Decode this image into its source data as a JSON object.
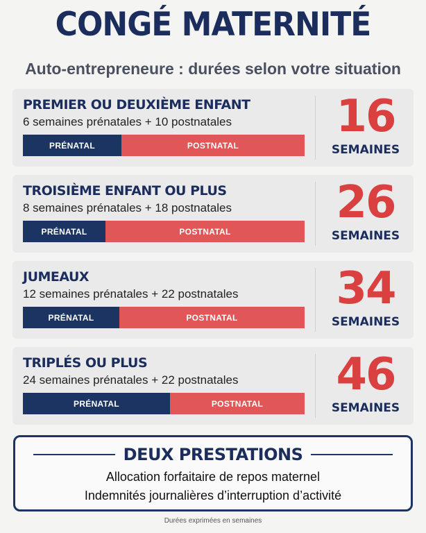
{
  "title": "CONGÉ MATERNITÉ",
  "subtitle": "Auto-entrepreneure : durées selon votre situation",
  "situations": [
    {
      "title": "PREMIER OU DEUXIÈME ENFANT",
      "detail": "6 semaines prénatales + 10 postnatales",
      "prenatal_weeks": 6,
      "postnatal_weeks": 10,
      "prenatal_label": "PRÉNATAL",
      "postnatal_label": "POSTNATAL",
      "total": "16",
      "unit": "SEMAINES"
    },
    {
      "title": "TROISIÈME ENFANT OU PLUS",
      "detail": "8 semaines prénatales + 18 postnatales",
      "prenatal_weeks": 8,
      "postnatal_weeks": 18,
      "prenatal_label": "PRÉNATAL",
      "postnatal_label": "POSTNATAL",
      "total": "26",
      "unit": "SEMAINES"
    },
    {
      "title": "JUMEAUX",
      "detail": "12 semaines prénatales + 22 postnatales",
      "prenatal_weeks": 12,
      "postnatal_weeks": 22,
      "prenatal_label": "PRÉNATAL",
      "postnatal_label": "POSTNATAL",
      "total": "34",
      "unit": "SEMAINES"
    },
    {
      "title": "TRIPLÉS OU PLUS",
      "detail": "24 semaines prénatales + 22 postnatales",
      "prenatal_weeks": 24,
      "postnatal_weeks": 22,
      "prenatal_label": "PRÉNATAL",
      "postnatal_label": "POSTNATAL",
      "total": "46",
      "unit": "SEMAINES"
    }
  ],
  "benefits": {
    "title": "DEUX PRESTATIONS",
    "items": [
      "Allocation forfaitaire de repos maternel",
      "Indemnités journalières d’interruption d’activité"
    ]
  },
  "footnote": "Durées exprimées en semaines",
  "colors": {
    "navy": "#1b3462",
    "red": "#e15757",
    "number_red": "#d9403f"
  }
}
